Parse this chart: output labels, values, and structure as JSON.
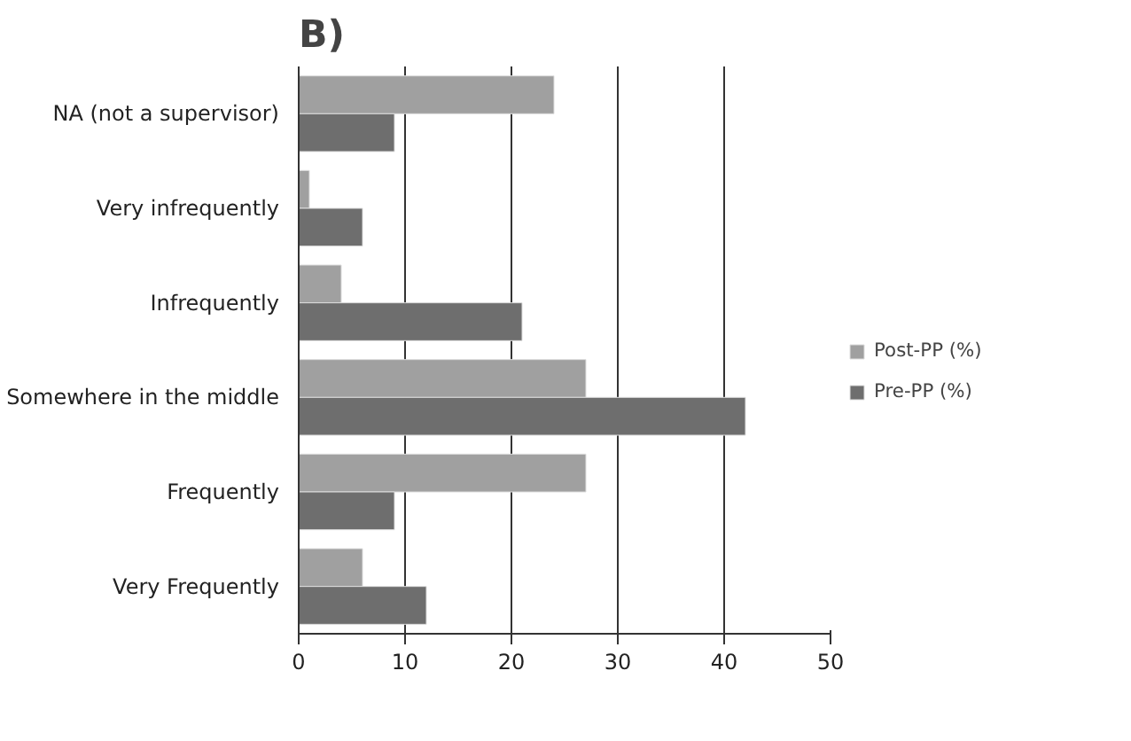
{
  "chart_data": {
    "type": "bar",
    "orientation": "horizontal",
    "title": "B)",
    "categories": [
      "NA (not a supervisor)",
      "Very infrequently",
      "Infrequently",
      "Somewhere in the middle",
      "Frequently",
      "Very Frequently"
    ],
    "series": [
      {
        "name": "Post-PP (%)",
        "color": "#a0a0a0",
        "values": [
          24,
          1,
          4,
          27,
          27,
          6
        ]
      },
      {
        "name": "Pre-PP (%)",
        "color": "#6e6e6e",
        "values": [
          9,
          6,
          21,
          42,
          9,
          12
        ]
      }
    ],
    "xlim": [
      0,
      50
    ],
    "xticks": [
      0,
      10,
      20,
      30,
      40,
      50
    ],
    "grid": "x",
    "legend": "right"
  }
}
